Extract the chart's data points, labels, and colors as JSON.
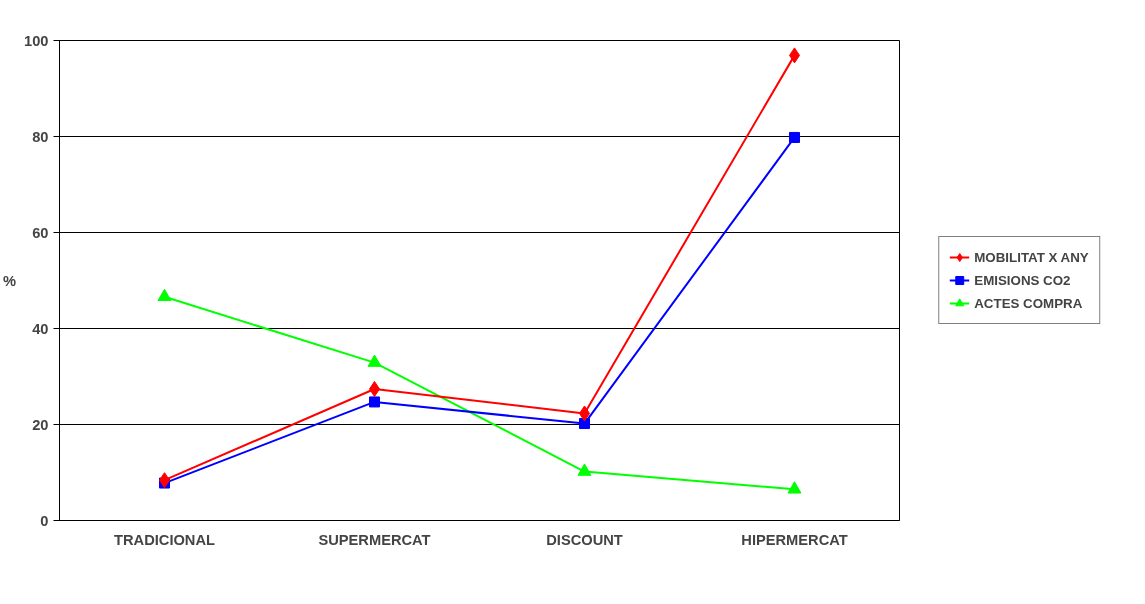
{
  "chart_data": {
    "type": "line",
    "ylabel": "%",
    "categories": [
      "TRADICIONAL",
      "SUPERMERCAT",
      "DISCOUNT",
      "HIPERMERCAT"
    ],
    "ylim": [
      0,
      100
    ],
    "yticks": [
      0,
      20,
      40,
      60,
      80,
      100
    ],
    "grid": "y",
    "legend": "right",
    "series": [
      {
        "name": "MOBILITAT X ANY",
        "color": "#ff0000",
        "marker": "diamond",
        "values": [
          8.4,
          27.4,
          22.3,
          96.9
        ]
      },
      {
        "name": "EMISIONS CO2",
        "color": "#0000ff",
        "marker": "square",
        "values": [
          7.8,
          24.7,
          20.2,
          79.8
        ]
      },
      {
        "name": "ACTES COMPRA",
        "color": "#00ff00",
        "marker": "triangle",
        "values": [
          46.6,
          32.9,
          10.2,
          6.5
        ]
      }
    ]
  }
}
